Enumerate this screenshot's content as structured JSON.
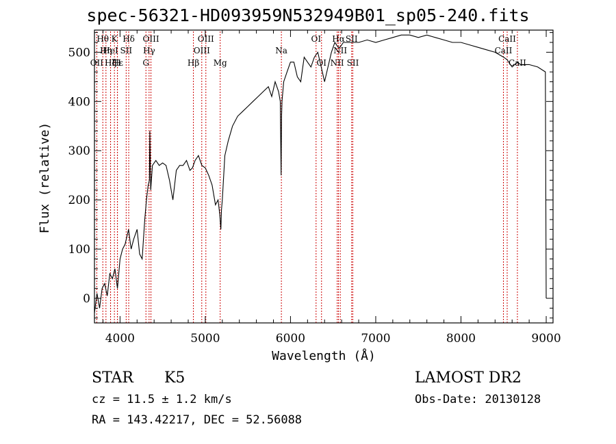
{
  "title": "spec-56321-HD093959N532949B01_sp05-240.fits",
  "info": {
    "object_class": "STAR",
    "subclass": "K5",
    "survey": "LAMOST DR2",
    "redshift": "cz = 11.5 ± 1.2 km/s",
    "obs_date": "Obs-Date: 20130128",
    "coords": "RA = 143.42217, DEC =  52.56088"
  },
  "chart_data": {
    "type": "line",
    "xlabel": "Wavelength (Å)",
    "ylabel": "Flux (relative)",
    "xlim": [
      3700,
      9080
    ],
    "ylim": [
      -50,
      545
    ],
    "xticks": [
      4000,
      5000,
      6000,
      7000,
      8000,
      9000
    ],
    "yticks": [
      0,
      100,
      200,
      300,
      400,
      500
    ],
    "grid": false,
    "line_color": "#000000",
    "marker_color": "#cc0000",
    "series": [
      {
        "x": [
          3700,
          3730,
          3760,
          3790,
          3820,
          3850,
          3880,
          3910,
          3940,
          3970,
          4000,
          4030,
          4060,
          4100,
          4130,
          4160,
          4200,
          4230,
          4260,
          4290,
          4310,
          4330,
          4345,
          4350,
          4360,
          4380,
          4420,
          4460,
          4500,
          4540,
          4580,
          4620,
          4660,
          4700,
          4740,
          4780,
          4820,
          4850,
          4880,
          4920,
          4960,
          5000,
          5040,
          5080,
          5120,
          5150,
          5170,
          5183,
          5190,
          5200,
          5230,
          5270,
          5320,
          5380,
          5440,
          5500,
          5560,
          5620,
          5680,
          5740,
          5780,
          5820,
          5860,
          5880,
          5890,
          5895,
          5900,
          5920,
          5960,
          6000,
          6040,
          6080,
          6120,
          6160,
          6200,
          6240,
          6280,
          6320,
          6360,
          6400,
          6440,
          6480,
          6520,
          6560,
          6580,
          6620,
          6700,
          6800,
          6900,
          7000,
          7100,
          7200,
          7300,
          7400,
          7500,
          7600,
          7700,
          7800,
          7900,
          8000,
          8100,
          8200,
          8300,
          8400,
          8500,
          8540,
          8600,
          8660,
          8700,
          8800,
          8900,
          8990,
          9000
        ],
        "y": [
          -30,
          10,
          -20,
          20,
          30,
          5,
          50,
          40,
          60,
          20,
          80,
          100,
          110,
          140,
          100,
          120,
          140,
          90,
          80,
          160,
          200,
          230,
          240,
          340,
          220,
          270,
          280,
          270,
          275,
          270,
          240,
          200,
          260,
          270,
          270,
          280,
          260,
          265,
          280,
          290,
          270,
          265,
          250,
          230,
          190,
          200,
          170,
          140,
          180,
          200,
          290,
          320,
          350,
          370,
          380,
          390,
          400,
          410,
          420,
          430,
          410,
          440,
          420,
          400,
          250,
          370,
          400,
          440,
          460,
          480,
          480,
          450,
          440,
          490,
          480,
          470,
          490,
          500,
          470,
          440,
          470,
          500,
          520,
          510,
          510,
          520,
          520,
          520,
          525,
          520,
          525,
          530,
          535,
          535,
          530,
          535,
          530,
          525,
          520,
          520,
          515,
          510,
          505,
          500,
          490,
          485,
          470,
          480,
          475,
          475,
          470,
          460,
          0
        ]
      }
    ],
    "line_markers": [
      {
        "name": "Hθ",
        "x": 3798,
        "row": 1
      },
      {
        "name": "OII",
        "x": 3727,
        "row": 3
      },
      {
        "name": "Hη",
        "x": 3835,
        "row": 2
      },
      {
        "name": "HeI",
        "x": 3889,
        "row": 2
      },
      {
        "name": "Hζ",
        "x": 3889,
        "row": 3
      },
      {
        "name": "K",
        "x": 3934,
        "row": 1
      },
      {
        "name": "Hε",
        "x": 3970,
        "row": 3
      },
      {
        "name": "H",
        "x": 3969,
        "row": 3
      },
      {
        "name": "SII",
        "x": 4072,
        "row": 2
      },
      {
        "name": "Hδ",
        "x": 4102,
        "row": 1
      },
      {
        "name": "G",
        "x": 4304,
        "row": 3
      },
      {
        "name": "OIII",
        "x": 4363,
        "row": 1
      },
      {
        "name": "Hγ",
        "x": 4341,
        "row": 2
      },
      {
        "name": "Hβ",
        "x": 4861,
        "row": 3
      },
      {
        "name": "OIII",
        "x": 4959,
        "row": 2
      },
      {
        "name": "OIII",
        "x": 5007,
        "row": 1
      },
      {
        "name": "Mg",
        "x": 5175,
        "row": 3
      },
      {
        "name": "Na",
        "x": 5893,
        "row": 2
      },
      {
        "name": "OI",
        "x": 6300,
        "row": 1
      },
      {
        "name": "OI",
        "x": 6364,
        "row": 3
      },
      {
        "name": "NII",
        "x": 6548,
        "row": 3
      },
      {
        "name": "Hα",
        "x": 6563,
        "row": 1
      },
      {
        "name": "NII",
        "x": 6584,
        "row": 2
      },
      {
        "name": "SII",
        "x": 6717,
        "row": 1
      },
      {
        "name": "SII",
        "x": 6731,
        "row": 3
      },
      {
        "name": "CaII",
        "x": 8498,
        "row": 2
      },
      {
        "name": "CaII",
        "x": 8542,
        "row": 1
      },
      {
        "name": "CaII",
        "x": 8662,
        "row": 3
      }
    ]
  }
}
